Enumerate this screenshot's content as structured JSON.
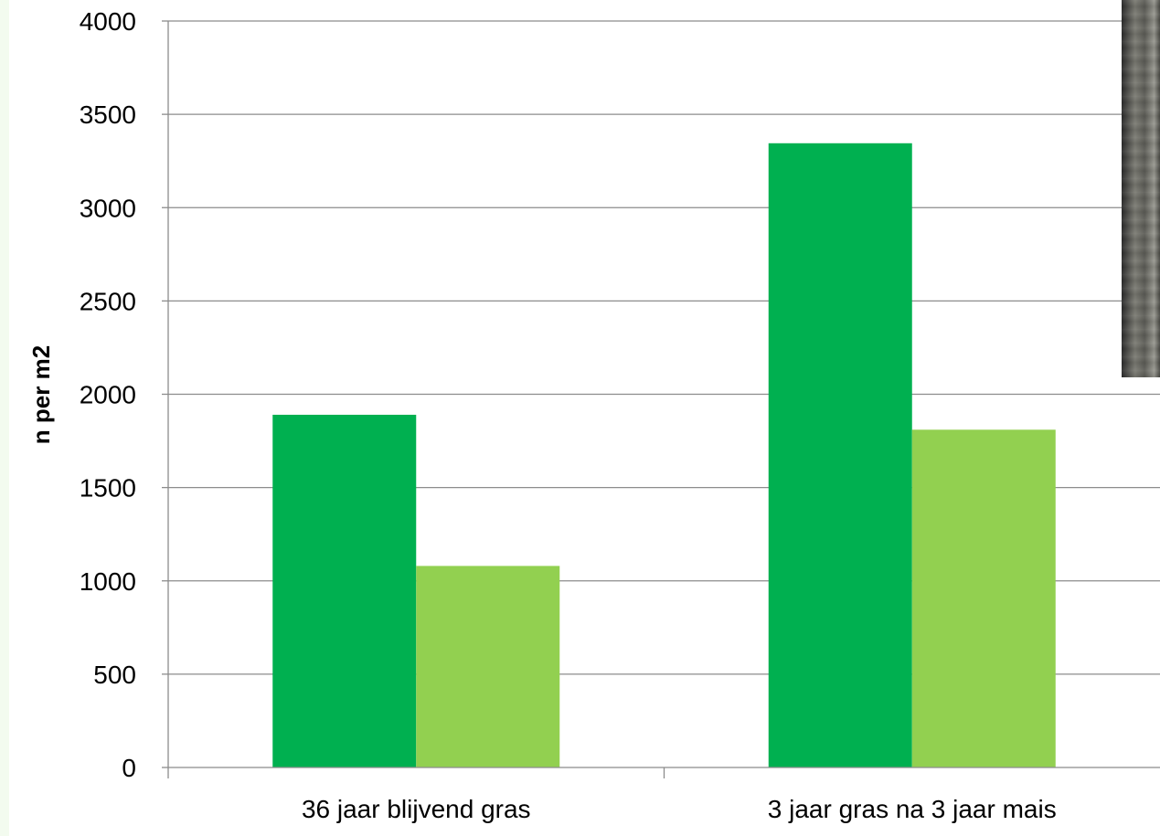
{
  "chart_data": {
    "type": "bar",
    "title": "",
    "xlabel": "",
    "ylabel": "n per m2",
    "ylim": [
      0,
      4000
    ],
    "yticks": [
      0,
      500,
      1000,
      1500,
      2000,
      2500,
      3000,
      3500,
      4000
    ],
    "categories": [
      "36 jaar blijvend gras",
      "3 jaar gras na 3 jaar mais"
    ],
    "series": [
      {
        "values": [
          1890,
          3345
        ],
        "color": "#00b050"
      },
      {
        "values": [
          1080,
          1810
        ],
        "color": "#92d050"
      }
    ],
    "grid": true,
    "legend": "none"
  },
  "photo": {
    "icon": "photo-thumbnail"
  }
}
